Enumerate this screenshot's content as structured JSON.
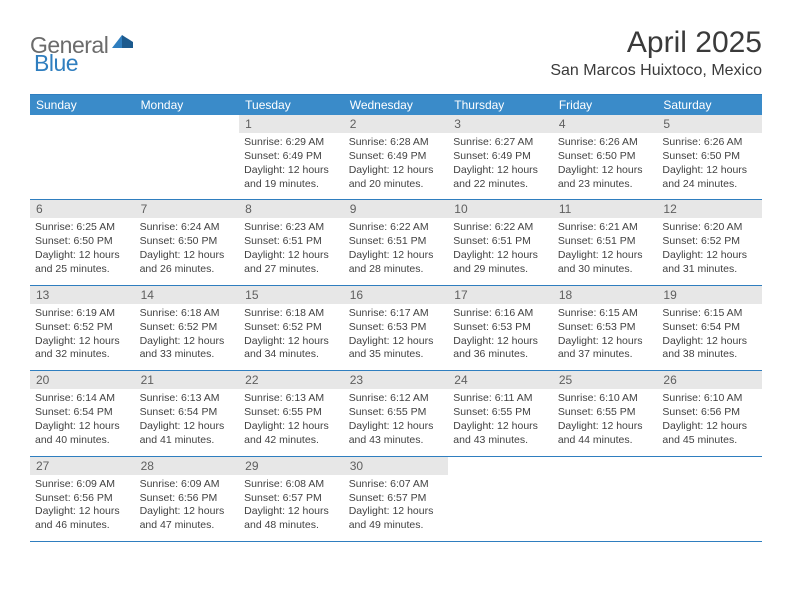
{
  "logo": {
    "text_a": "General",
    "text_b": "Blue"
  },
  "title": "April 2025",
  "location": "San Marcos Huixtoco, Mexico",
  "colors": {
    "header_bg": "#3a8bc9",
    "rule": "#2f7ebf",
    "daynum_bg": "#e7e7e7",
    "text": "#424242"
  },
  "weekdays": [
    "Sunday",
    "Monday",
    "Tuesday",
    "Wednesday",
    "Thursday",
    "Friday",
    "Saturday"
  ],
  "weeks": [
    [
      {
        "num": "",
        "sunrise": "",
        "sunset": "",
        "daylight": ""
      },
      {
        "num": "",
        "sunrise": "",
        "sunset": "",
        "daylight": ""
      },
      {
        "num": "1",
        "sunrise": "Sunrise: 6:29 AM",
        "sunset": "Sunset: 6:49 PM",
        "daylight": "Daylight: 12 hours and 19 minutes."
      },
      {
        "num": "2",
        "sunrise": "Sunrise: 6:28 AM",
        "sunset": "Sunset: 6:49 PM",
        "daylight": "Daylight: 12 hours and 20 minutes."
      },
      {
        "num": "3",
        "sunrise": "Sunrise: 6:27 AM",
        "sunset": "Sunset: 6:49 PM",
        "daylight": "Daylight: 12 hours and 22 minutes."
      },
      {
        "num": "4",
        "sunrise": "Sunrise: 6:26 AM",
        "sunset": "Sunset: 6:50 PM",
        "daylight": "Daylight: 12 hours and 23 minutes."
      },
      {
        "num": "5",
        "sunrise": "Sunrise: 6:26 AM",
        "sunset": "Sunset: 6:50 PM",
        "daylight": "Daylight: 12 hours and 24 minutes."
      }
    ],
    [
      {
        "num": "6",
        "sunrise": "Sunrise: 6:25 AM",
        "sunset": "Sunset: 6:50 PM",
        "daylight": "Daylight: 12 hours and 25 minutes."
      },
      {
        "num": "7",
        "sunrise": "Sunrise: 6:24 AM",
        "sunset": "Sunset: 6:50 PM",
        "daylight": "Daylight: 12 hours and 26 minutes."
      },
      {
        "num": "8",
        "sunrise": "Sunrise: 6:23 AM",
        "sunset": "Sunset: 6:51 PM",
        "daylight": "Daylight: 12 hours and 27 minutes."
      },
      {
        "num": "9",
        "sunrise": "Sunrise: 6:22 AM",
        "sunset": "Sunset: 6:51 PM",
        "daylight": "Daylight: 12 hours and 28 minutes."
      },
      {
        "num": "10",
        "sunrise": "Sunrise: 6:22 AM",
        "sunset": "Sunset: 6:51 PM",
        "daylight": "Daylight: 12 hours and 29 minutes."
      },
      {
        "num": "11",
        "sunrise": "Sunrise: 6:21 AM",
        "sunset": "Sunset: 6:51 PM",
        "daylight": "Daylight: 12 hours and 30 minutes."
      },
      {
        "num": "12",
        "sunrise": "Sunrise: 6:20 AM",
        "sunset": "Sunset: 6:52 PM",
        "daylight": "Daylight: 12 hours and 31 minutes."
      }
    ],
    [
      {
        "num": "13",
        "sunrise": "Sunrise: 6:19 AM",
        "sunset": "Sunset: 6:52 PM",
        "daylight": "Daylight: 12 hours and 32 minutes."
      },
      {
        "num": "14",
        "sunrise": "Sunrise: 6:18 AM",
        "sunset": "Sunset: 6:52 PM",
        "daylight": "Daylight: 12 hours and 33 minutes."
      },
      {
        "num": "15",
        "sunrise": "Sunrise: 6:18 AM",
        "sunset": "Sunset: 6:52 PM",
        "daylight": "Daylight: 12 hours and 34 minutes."
      },
      {
        "num": "16",
        "sunrise": "Sunrise: 6:17 AM",
        "sunset": "Sunset: 6:53 PM",
        "daylight": "Daylight: 12 hours and 35 minutes."
      },
      {
        "num": "17",
        "sunrise": "Sunrise: 6:16 AM",
        "sunset": "Sunset: 6:53 PM",
        "daylight": "Daylight: 12 hours and 36 minutes."
      },
      {
        "num": "18",
        "sunrise": "Sunrise: 6:15 AM",
        "sunset": "Sunset: 6:53 PM",
        "daylight": "Daylight: 12 hours and 37 minutes."
      },
      {
        "num": "19",
        "sunrise": "Sunrise: 6:15 AM",
        "sunset": "Sunset: 6:54 PM",
        "daylight": "Daylight: 12 hours and 38 minutes."
      }
    ],
    [
      {
        "num": "20",
        "sunrise": "Sunrise: 6:14 AM",
        "sunset": "Sunset: 6:54 PM",
        "daylight": "Daylight: 12 hours and 40 minutes."
      },
      {
        "num": "21",
        "sunrise": "Sunrise: 6:13 AM",
        "sunset": "Sunset: 6:54 PM",
        "daylight": "Daylight: 12 hours and 41 minutes."
      },
      {
        "num": "22",
        "sunrise": "Sunrise: 6:13 AM",
        "sunset": "Sunset: 6:55 PM",
        "daylight": "Daylight: 12 hours and 42 minutes."
      },
      {
        "num": "23",
        "sunrise": "Sunrise: 6:12 AM",
        "sunset": "Sunset: 6:55 PM",
        "daylight": "Daylight: 12 hours and 43 minutes."
      },
      {
        "num": "24",
        "sunrise": "Sunrise: 6:11 AM",
        "sunset": "Sunset: 6:55 PM",
        "daylight": "Daylight: 12 hours and 43 minutes."
      },
      {
        "num": "25",
        "sunrise": "Sunrise: 6:10 AM",
        "sunset": "Sunset: 6:55 PM",
        "daylight": "Daylight: 12 hours and 44 minutes."
      },
      {
        "num": "26",
        "sunrise": "Sunrise: 6:10 AM",
        "sunset": "Sunset: 6:56 PM",
        "daylight": "Daylight: 12 hours and 45 minutes."
      }
    ],
    [
      {
        "num": "27",
        "sunrise": "Sunrise: 6:09 AM",
        "sunset": "Sunset: 6:56 PM",
        "daylight": "Daylight: 12 hours and 46 minutes."
      },
      {
        "num": "28",
        "sunrise": "Sunrise: 6:09 AM",
        "sunset": "Sunset: 6:56 PM",
        "daylight": "Daylight: 12 hours and 47 minutes."
      },
      {
        "num": "29",
        "sunrise": "Sunrise: 6:08 AM",
        "sunset": "Sunset: 6:57 PM",
        "daylight": "Daylight: 12 hours and 48 minutes."
      },
      {
        "num": "30",
        "sunrise": "Sunrise: 6:07 AM",
        "sunset": "Sunset: 6:57 PM",
        "daylight": "Daylight: 12 hours and 49 minutes."
      },
      {
        "num": "",
        "sunrise": "",
        "sunset": "",
        "daylight": ""
      },
      {
        "num": "",
        "sunrise": "",
        "sunset": "",
        "daylight": ""
      },
      {
        "num": "",
        "sunrise": "",
        "sunset": "",
        "daylight": ""
      }
    ]
  ]
}
